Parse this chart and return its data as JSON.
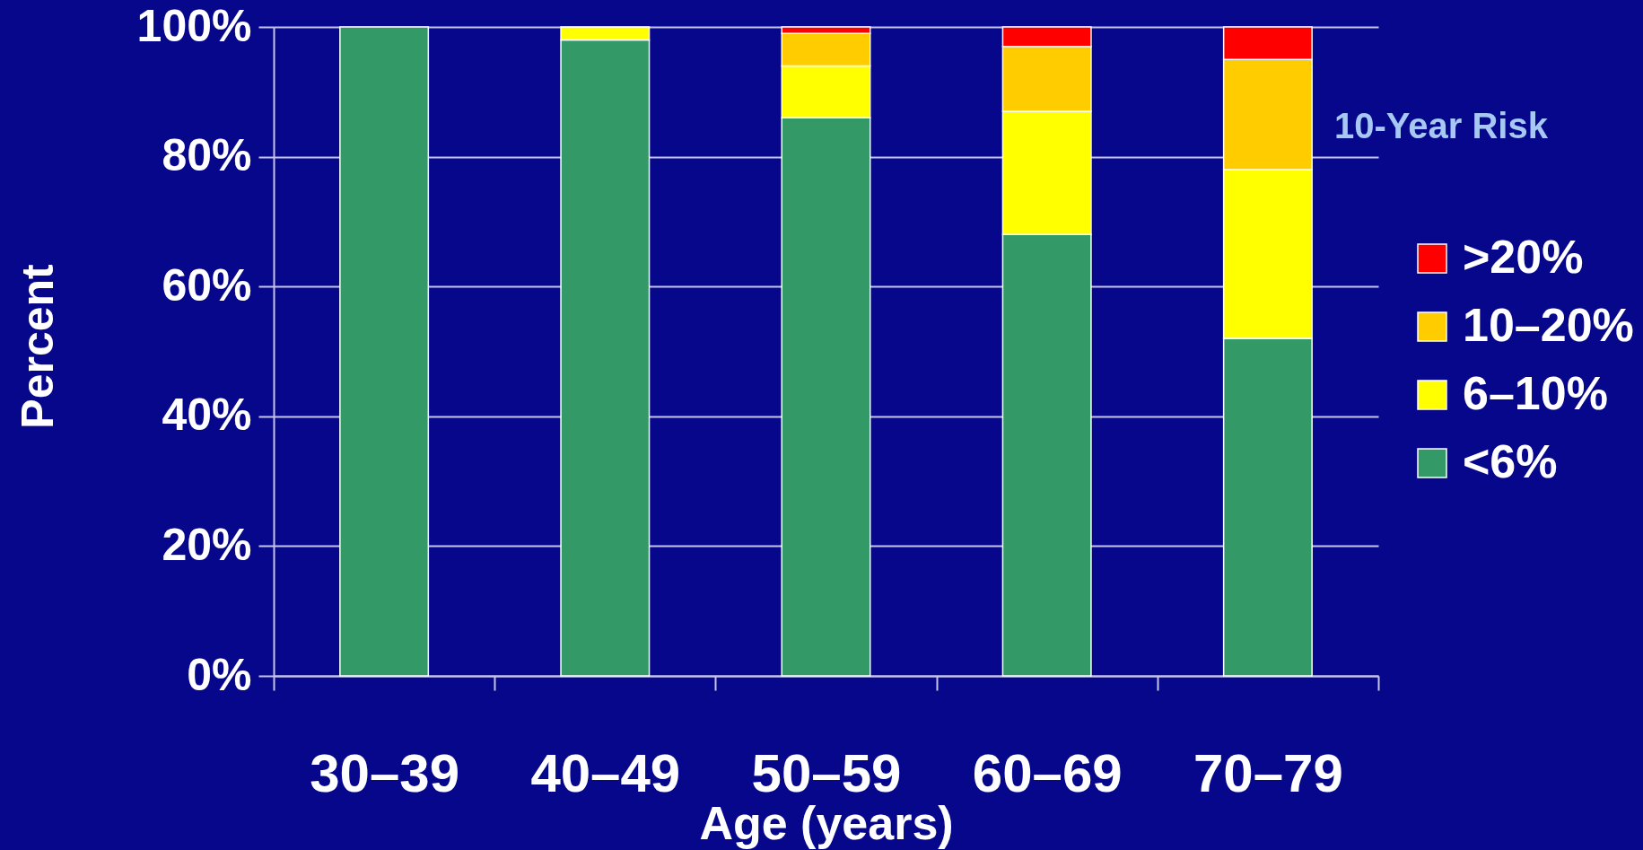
{
  "chart_data": {
    "type": "bar",
    "stacked": true,
    "xlabel": "Age (years)",
    "ylabel": "Percent",
    "legend_title": "10-Year Risk",
    "categories": [
      "30–39",
      "40–49",
      "50–59",
      "60–69",
      "70–79"
    ],
    "series": [
      {
        "name": "<6%",
        "color": "#339966",
        "values": [
          100,
          98,
          86,
          68,
          52
        ]
      },
      {
        "name": "6–10%",
        "color": "#ffff00",
        "values": [
          null,
          2,
          8,
          19,
          26
        ]
      },
      {
        "name": "10–20%",
        "color": "#ffcc00",
        "values": [
          null,
          null,
          5,
          10,
          17
        ]
      },
      {
        "name": ">20%",
        "color": "#ff0000",
        "values": [
          null,
          null,
          1,
          3,
          5
        ]
      }
    ],
    "ylim": [
      0,
      100
    ],
    "yticks": [
      {
        "value": 0,
        "label": "0%"
      },
      {
        "value": 20,
        "label": "20%"
      },
      {
        "value": 40,
        "label": "40%"
      },
      {
        "value": 60,
        "label": "60%"
      },
      {
        "value": 80,
        "label": "80%"
      },
      {
        "value": 100,
        "label": "100%"
      }
    ],
    "grid": "y",
    "legend": "right"
  }
}
